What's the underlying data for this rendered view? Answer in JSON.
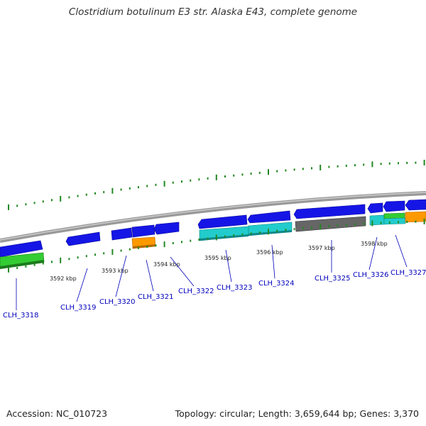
{
  "header": {
    "title": "Clostridium botulinum E3 str. Alaska E43, complete genome"
  },
  "colors": {
    "forward_cds": "#1515e6",
    "reverse_cds_green": "#33cc33",
    "orange": "#ff9900",
    "cyan": "#22cccc",
    "gray": "#666666",
    "tick": "#228822",
    "label": "#0000bb",
    "backbone": "#999999"
  },
  "ruler": {
    "kbp_labels": [
      "3592 kbp",
      "3593 kbp",
      "3594 kbp",
      "3595 kbp",
      "3596 kbp",
      "3597 kbp",
      "3598 kbp"
    ]
  },
  "genes": [
    {
      "label": "CLH_3318"
    },
    {
      "label": "CLH_3319"
    },
    {
      "label": "CLH_3320"
    },
    {
      "label": "CLH_3321"
    },
    {
      "label": "CLH_3322"
    },
    {
      "label": "CLH_3323"
    },
    {
      "label": "CLH_3324"
    },
    {
      "label": "CLH_3325"
    },
    {
      "label": "CLH_3326"
    },
    {
      "label": "CLH_3327"
    }
  ],
  "footer": {
    "accession": "Accession: NC_010723",
    "topology": "Topology: circular; Length: 3,659,644 bp; Genes: 3,370"
  }
}
